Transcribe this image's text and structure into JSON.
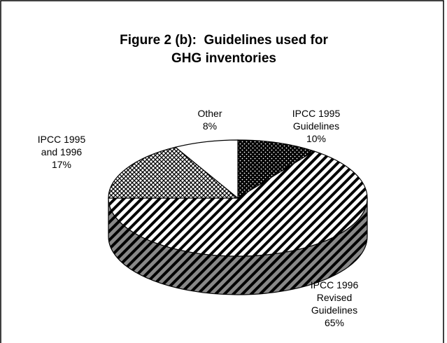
{
  "chart_data": {
    "type": "pie3d",
    "title": "Figure 2 (b):  Guidelines used for GHG inventories",
    "categories": [
      "IPCC 1995 Guidelines",
      "IPCC 1996 Revised Guidelines",
      "IPCC 1995 and 1996",
      "Other"
    ],
    "values": [
      10,
      65,
      17,
      8
    ],
    "value_labels": [
      "10%",
      "65%",
      "17%",
      "8%"
    ]
  }
}
